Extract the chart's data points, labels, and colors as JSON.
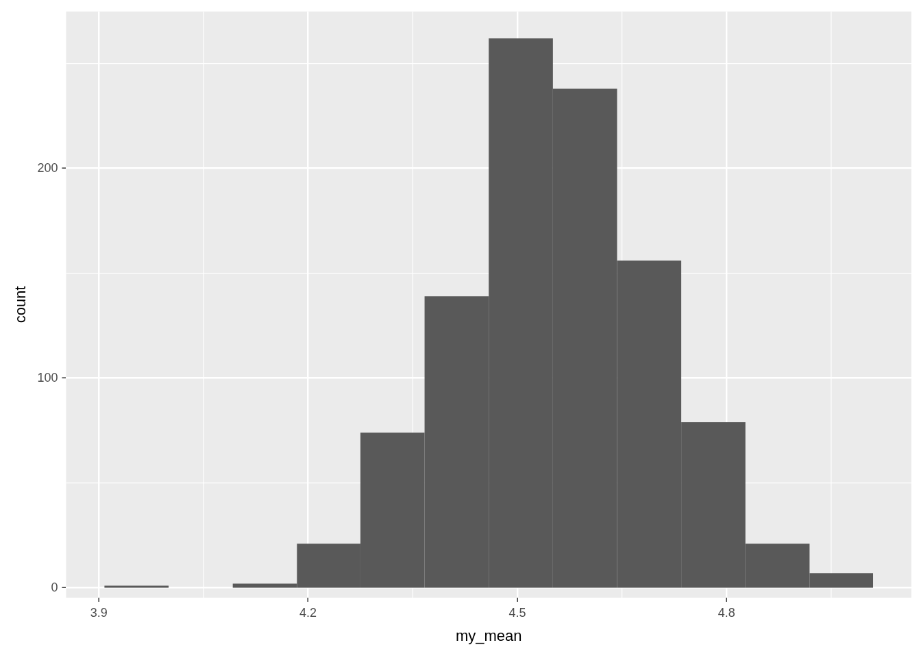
{
  "chart_data": {
    "type": "histogram",
    "xlabel": "my_mean",
    "ylabel": "count",
    "color": "#595959",
    "bins": [
      3.908,
      4.0,
      4.092,
      4.184,
      4.275,
      4.367,
      4.459,
      4.551,
      4.643,
      4.735,
      4.827,
      4.919,
      5.01
    ],
    "values": [
      1,
      0,
      2,
      21,
      74,
      139,
      262,
      238,
      156,
      79,
      21,
      7
    ],
    "xlim": [
      3.853,
      5.065
    ],
    "ylim": [
      -4.7,
      274.8
    ],
    "xticks": [
      3.9,
      4.2,
      4.5,
      4.8
    ],
    "yticks": [
      0,
      100,
      200
    ],
    "grid": true,
    "legend": false
  }
}
